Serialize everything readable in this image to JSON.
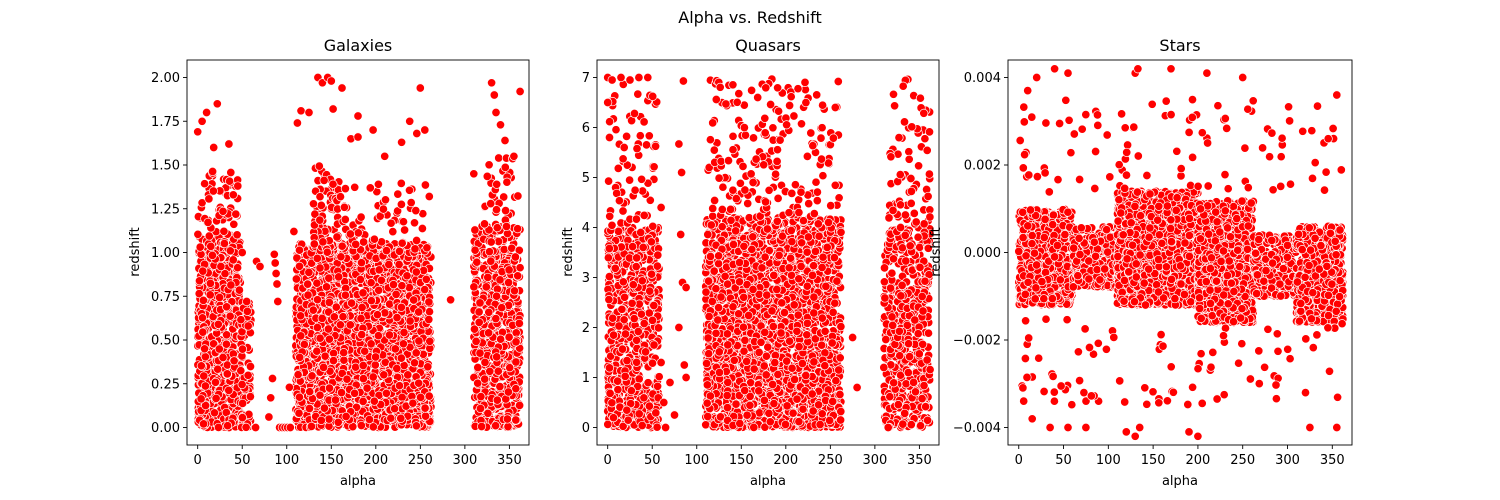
{
  "figure_title": "Alpha vs. Redshift",
  "colors": {
    "point_fill": "#ff0000",
    "point_edge": "#ffffff",
    "axes": "#000000"
  },
  "chart_data": [
    {
      "type": "scatter",
      "title": "Galaxies",
      "xlabel": "alpha",
      "ylabel": "redshift",
      "xlim": [
        -12,
        372
      ],
      "ylim": [
        -0.1,
        2.1
      ],
      "xticks": [
        0,
        50,
        100,
        150,
        200,
        250,
        300,
        350
      ],
      "xtick_labels": [
        "0",
        "50",
        "100",
        "150",
        "200",
        "250",
        "300",
        "350"
      ],
      "yticks": [
        0,
        0.25,
        0.5,
        0.75,
        1.0,
        1.25,
        1.5,
        1.75,
        2.0
      ],
      "ytick_labels": [
        "0.00",
        "0.25",
        "0.50",
        "0.75",
        "1.00",
        "1.25",
        "1.50",
        "1.75",
        "2.00"
      ],
      "grid": false,
      "series": [
        {
          "clusters": [
            {
              "x": [
                0,
                48
              ],
              "y": [
                0.0,
                1.1
              ],
              "n": 700
            },
            {
              "x": [
                0,
                45
              ],
              "y": [
                1.1,
                1.5
              ],
              "n": 55
            },
            {
              "x": [
                48,
                60
              ],
              "y": [
                0.0,
                0.72
              ],
              "n": 90
            },
            {
              "x": [
                110,
                262
              ],
              "y": [
                0.0,
                1.05
              ],
              "n": 2400
            },
            {
              "x": [
                130,
                160
              ],
              "y": [
                1.0,
                1.5
              ],
              "n": 90
            },
            {
              "x": [
                160,
                260
              ],
              "y": [
                1.0,
                1.4
              ],
              "n": 70
            },
            {
              "x": [
                310,
                362
              ],
              "y": [
                0.0,
                1.15
              ],
              "n": 650
            },
            {
              "x": [
                320,
                360
              ],
              "y": [
                1.1,
                1.55
              ],
              "n": 40
            }
          ],
          "points": [
            {
              "x": 0,
              "y": 1.69
            },
            {
              "x": 5,
              "y": 1.75
            },
            {
              "x": 10,
              "y": 1.8
            },
            {
              "x": 22,
              "y": 1.85
            },
            {
              "x": 18,
              "y": 1.6
            },
            {
              "x": 35,
              "y": 1.62
            },
            {
              "x": 40,
              "y": 1.33
            },
            {
              "x": 45,
              "y": 1.38
            },
            {
              "x": 50,
              "y": 1.0
            },
            {
              "x": 55,
              "y": 0.72
            },
            {
              "x": 65,
              "y": 0.0
            },
            {
              "x": 66,
              "y": 0.95
            },
            {
              "x": 70,
              "y": 0.92
            },
            {
              "x": 80,
              "y": 0.06
            },
            {
              "x": 82,
              "y": 0.17
            },
            {
              "x": 84,
              "y": 0.28
            },
            {
              "x": 86,
              "y": 0.99
            },
            {
              "x": 87,
              "y": 0.94
            },
            {
              "x": 88,
              "y": 0.88
            },
            {
              "x": 89,
              "y": 0.82
            },
            {
              "x": 90,
              "y": 0.72
            },
            {
              "x": 92,
              "y": 0.0
            },
            {
              "x": 95,
              "y": 0.0
            },
            {
              "x": 98,
              "y": 0.0
            },
            {
              "x": 101,
              "y": 0.0
            },
            {
              "x": 104,
              "y": 0.0
            },
            {
              "x": 103,
              "y": 0.23
            },
            {
              "x": 108,
              "y": 1.12
            },
            {
              "x": 112,
              "y": 1.74
            },
            {
              "x": 116,
              "y": 1.81
            },
            {
              "x": 125,
              "y": 1.8
            },
            {
              "x": 135,
              "y": 2.0
            },
            {
              "x": 140,
              "y": 1.97
            },
            {
              "x": 146,
              "y": 2.0
            },
            {
              "x": 150,
              "y": 1.98
            },
            {
              "x": 152,
              "y": 1.82
            },
            {
              "x": 162,
              "y": 1.94
            },
            {
              "x": 172,
              "y": 1.65
            },
            {
              "x": 180,
              "y": 1.66
            },
            {
              "x": 180,
              "y": 1.78
            },
            {
              "x": 197,
              "y": 1.7
            },
            {
              "x": 210,
              "y": 1.55
            },
            {
              "x": 229,
              "y": 1.63
            },
            {
              "x": 238,
              "y": 1.75
            },
            {
              "x": 246,
              "y": 1.68
            },
            {
              "x": 250,
              "y": 1.94
            },
            {
              "x": 255,
              "y": 1.7
            },
            {
              "x": 260,
              "y": 1.32
            },
            {
              "x": 284,
              "y": 0.73
            },
            {
              "x": 310,
              "y": 1.45
            },
            {
              "x": 330,
              "y": 1.97
            },
            {
              "x": 333,
              "y": 1.9
            },
            {
              "x": 335,
              "y": 1.8
            },
            {
              "x": 340,
              "y": 1.73
            },
            {
              "x": 345,
              "y": 1.64
            },
            {
              "x": 355,
              "y": 1.55
            },
            {
              "x": 362,
              "y": 1.92
            }
          ]
        }
      ]
    },
    {
      "type": "scatter",
      "title": "Quasars",
      "xlabel": "alpha",
      "ylabel": "redshift",
      "xlim": [
        -12,
        372
      ],
      "ylim": [
        -0.35,
        7.35
      ],
      "xticks": [
        0,
        50,
        100,
        150,
        200,
        250,
        300,
        350
      ],
      "xtick_labels": [
        "0",
        "50",
        "100",
        "150",
        "200",
        "250",
        "300",
        "350"
      ],
      "yticks": [
        0,
        1,
        2,
        3,
        4,
        5,
        6,
        7
      ],
      "ytick_labels": [
        "0",
        "1",
        "2",
        "3",
        "4",
        "5",
        "6",
        "7"
      ],
      "grid": false,
      "series": [
        {
          "clusters": [
            {
              "x": [
                0,
                58
              ],
              "y": [
                0.0,
                4.0
              ],
              "n": 650
            },
            {
              "x": [
                0,
                55
              ],
              "y": [
                4.0,
                7.0
              ],
              "n": 70
            },
            {
              "x": [
                110,
                262
              ],
              "y": [
                0.0,
                4.2
              ],
              "n": 2300
            },
            {
              "x": [
                110,
                262
              ],
              "y": [
                4.2,
                7.0
              ],
              "n": 190
            },
            {
              "x": [
                310,
                362
              ],
              "y": [
                0.0,
                4.0
              ],
              "n": 520
            },
            {
              "x": [
                315,
                362
              ],
              "y": [
                4.0,
                7.0
              ],
              "n": 70
            }
          ],
          "points": [
            {
              "x": 0,
              "y": 7.0
            },
            {
              "x": 5,
              "y": 6.95
            },
            {
              "x": 15,
              "y": 7.0
            },
            {
              "x": 25,
              "y": 6.95
            },
            {
              "x": 35,
              "y": 7.0
            },
            {
              "x": 45,
              "y": 7.0
            },
            {
              "x": 0,
              "y": 6.5
            },
            {
              "x": 2,
              "y": 5.8
            },
            {
              "x": 60,
              "y": 4.4
            },
            {
              "x": 60,
              "y": 1.3
            },
            {
              "x": 63,
              "y": 0.5
            },
            {
              "x": 65,
              "y": 0.0
            },
            {
              "x": 70,
              "y": 0.9
            },
            {
              "x": 75,
              "y": 0.25
            },
            {
              "x": 80,
              "y": 2.0
            },
            {
              "x": 80,
              "y": 5.67
            },
            {
              "x": 82,
              "y": 3.86
            },
            {
              "x": 83,
              "y": 5.1
            },
            {
              "x": 84,
              "y": 2.9
            },
            {
              "x": 85,
              "y": 6.93
            },
            {
              "x": 86,
              "y": 1.25
            },
            {
              "x": 88,
              "y": 2.8
            },
            {
              "x": 88,
              "y": 1.0
            },
            {
              "x": 275,
              "y": 1.8
            },
            {
              "x": 280,
              "y": 0.8
            },
            {
              "x": 310,
              "y": 1.2
            },
            {
              "x": 315,
              "y": 0.0
            }
          ]
        }
      ]
    },
    {
      "type": "scatter",
      "title": "Stars",
      "xlabel": "alpha",
      "ylabel": "redshift",
      "xlim": [
        -12,
        372
      ],
      "ylim": [
        -0.0044,
        0.0044
      ],
      "xticks": [
        0,
        50,
        100,
        150,
        200,
        250,
        300,
        350
      ],
      "xtick_labels": [
        "0",
        "50",
        "100",
        "150",
        "200",
        "250",
        "300",
        "350"
      ],
      "yticks": [
        -0.004,
        -0.002,
        0.0,
        0.002,
        0.004
      ],
      "ytick_labels": [
        "−0.004",
        "−0.002",
        "0.000",
        "0.002",
        "0.004"
      ],
      "grid": false,
      "series": [
        {
          "clusters": [
            {
              "x": [
                0,
                60
              ],
              "y": [
                -0.0012,
                0.001
              ],
              "n": 650
            },
            {
              "x": [
                60,
                110
              ],
              "y": [
                -0.0008,
                0.0006
              ],
              "n": 280
            },
            {
              "x": [
                110,
                200
              ],
              "y": [
                -0.0012,
                0.0014
              ],
              "n": 1500
            },
            {
              "x": [
                200,
                262
              ],
              "y": [
                -0.0016,
                0.0012
              ],
              "n": 800
            },
            {
              "x": [
                262,
                310
              ],
              "y": [
                -0.001,
                0.0004
              ],
              "n": 250
            },
            {
              "x": [
                310,
                362
              ],
              "y": [
                -0.0016,
                0.0006
              ],
              "n": 550
            },
            {
              "x": [
                0,
                362
              ],
              "y": [
                0.0013,
                0.0035
              ],
              "n": 100
            },
            {
              "x": [
                0,
                362
              ],
              "y": [
                -0.0035,
                -0.0015
              ],
              "n": 90
            }
          ],
          "points": [
            {
              "x": 10,
              "y": 0.0037
            },
            {
              "x": 20,
              "y": 0.004
            },
            {
              "x": 40,
              "y": 0.0042
            },
            {
              "x": 55,
              "y": 0.0041
            },
            {
              "x": 130,
              "y": 0.0041
            },
            {
              "x": 133,
              "y": 0.0042
            },
            {
              "x": 170,
              "y": 0.0042
            },
            {
              "x": 210,
              "y": 0.0041
            },
            {
              "x": 250,
              "y": 0.004
            },
            {
              "x": 355,
              "y": 0.0036
            },
            {
              "x": 15,
              "y": -0.0038
            },
            {
              "x": 35,
              "y": -0.004
            },
            {
              "x": 55,
              "y": -0.004
            },
            {
              "x": 75,
              "y": -0.004
            },
            {
              "x": 120,
              "y": -0.0041
            },
            {
              "x": 130,
              "y": -0.0042
            },
            {
              "x": 135,
              "y": -0.004
            },
            {
              "x": 190,
              "y": -0.0041
            },
            {
              "x": 200,
              "y": -0.0042
            },
            {
              "x": 325,
              "y": -0.004
            },
            {
              "x": 355,
              "y": -0.004
            }
          ]
        }
      ]
    }
  ]
}
